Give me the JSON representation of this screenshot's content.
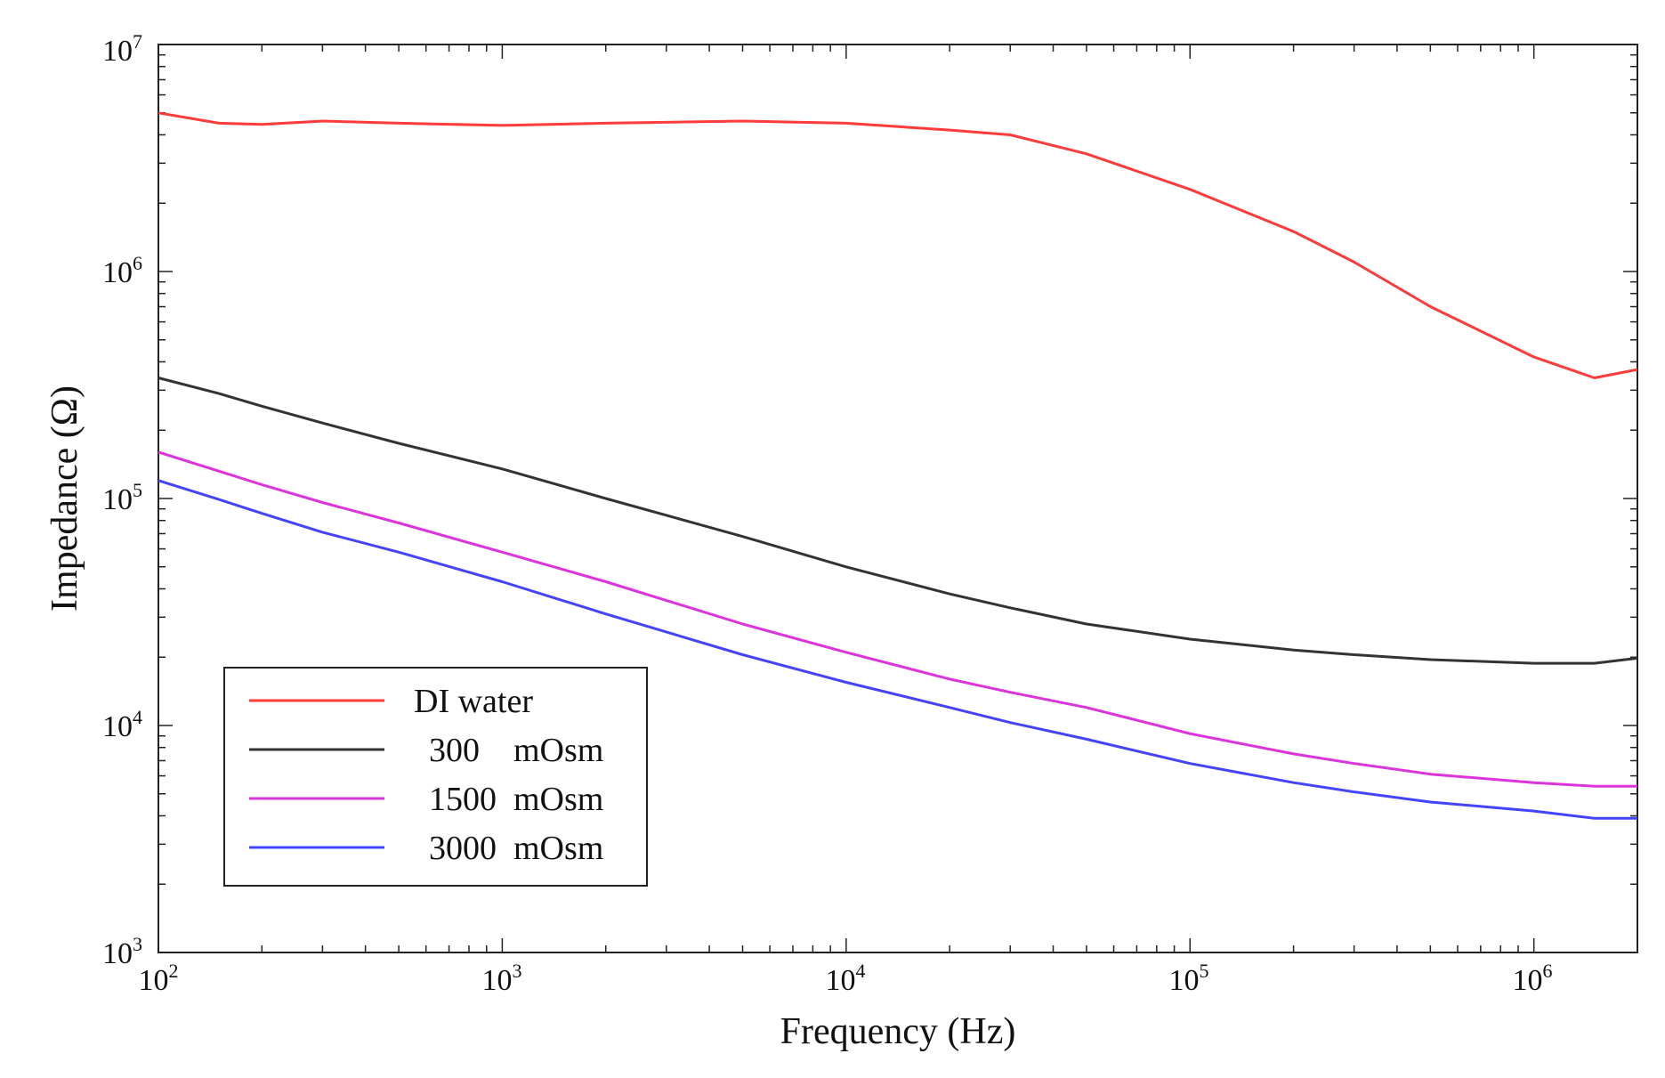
{
  "chart_data": {
    "type": "line",
    "title": "",
    "xlabel": "Frequency (Hz)",
    "ylabel": "Impedance (Ω)",
    "xscale": "log",
    "yscale": "log",
    "xlim": [
      100,
      2000000
    ],
    "ylim": [
      1000,
      10000000
    ],
    "x_ticks": [
      {
        "base": "10",
        "exp": "2"
      },
      {
        "base": "10",
        "exp": "3"
      },
      {
        "base": "10",
        "exp": "4"
      },
      {
        "base": "10",
        "exp": "5"
      },
      {
        "base": "10",
        "exp": "6"
      }
    ],
    "y_ticks": [
      {
        "base": "10",
        "exp": "3"
      },
      {
        "base": "10",
        "exp": "4"
      },
      {
        "base": "10",
        "exp": "5"
      },
      {
        "base": "10",
        "exp": "6"
      },
      {
        "base": "10",
        "exp": "7"
      }
    ],
    "grid": false,
    "legend_position": "lower-left",
    "x": [
      100,
      150,
      200,
      300,
      500,
      1000,
      2000,
      5000,
      10000,
      20000,
      30000,
      50000,
      100000,
      200000,
      300000,
      500000,
      1000000,
      1500000,
      2000000
    ],
    "series": [
      {
        "name": "DI water",
        "color": "#ff3b3b",
        "values": [
          5000000,
          4500000,
          4450000,
          4600000,
          4500000,
          4400000,
          4500000,
          4600000,
          4500000,
          4200000,
          4000000,
          3300000,
          2300000,
          1500000,
          1100000,
          700000,
          420000,
          340000,
          370000
        ]
      },
      {
        "name": "300    mOsm",
        "color": "#333333",
        "values": [
          340000,
          290000,
          255000,
          215000,
          175000,
          135000,
          100000,
          68000,
          50000,
          38000,
          33000,
          28000,
          24000,
          21500,
          20500,
          19500,
          18800,
          18800,
          19800
        ]
      },
      {
        "name": "1500  mOsm",
        "color": "#dd33dd",
        "values": [
          160000,
          132000,
          115000,
          96000,
          78000,
          58000,
          43000,
          28000,
          21000,
          16000,
          14000,
          12000,
          9200,
          7500,
          6800,
          6100,
          5600,
          5400,
          5400
        ]
      },
      {
        "name": "3000  mOsm",
        "color": "#4444ff",
        "values": [
          120000,
          99000,
          86000,
          71000,
          58000,
          43000,
          31000,
          20500,
          15500,
          12000,
          10300,
          8700,
          6800,
          5600,
          5100,
          4600,
          4200,
          3900,
          3900
        ]
      }
    ]
  }
}
